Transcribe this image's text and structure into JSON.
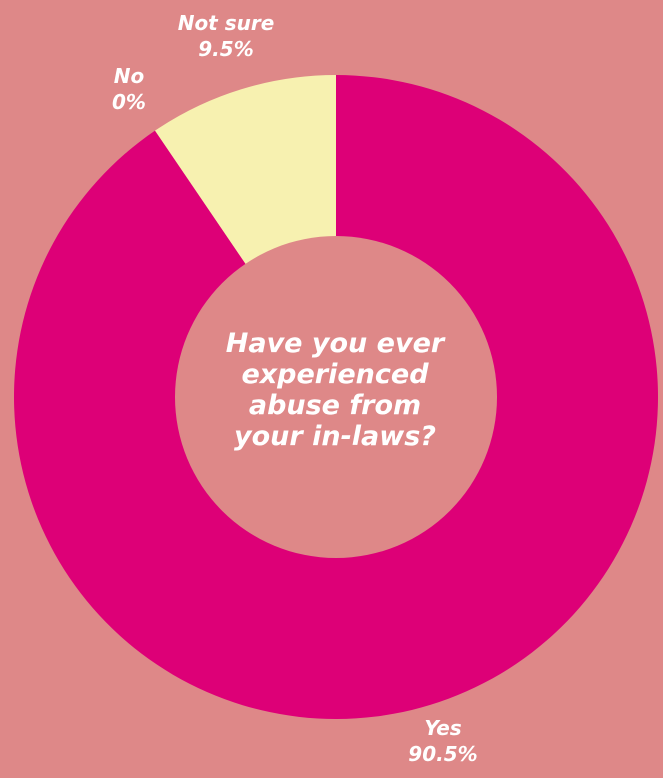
{
  "chart_data": {
    "type": "pie",
    "title": "Have you ever experienced abuse from your in-laws?",
    "title_lines": [
      "Have you ever",
      "experienced",
      "abuse from",
      "your in-laws?"
    ],
    "slices": [
      {
        "label": "Not sure",
        "value": 9.5,
        "display": "9.5%",
        "color": "#f7f1b0"
      },
      {
        "label": "No",
        "value": 0,
        "display": "0%",
        "color": "#dd0077"
      },
      {
        "label": "Yes",
        "value": 90.5,
        "display": "90.5%",
        "color": "#dd0077"
      }
    ],
    "donut": true
  },
  "colors": {
    "background": "#de8888",
    "yes": "#dd0077",
    "not_sure": "#f7f1b0",
    "hole": "#de8888",
    "text": "#ffffff"
  }
}
